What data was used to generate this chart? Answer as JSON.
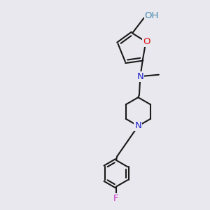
{
  "bg_color": "#e8e8ee",
  "bond_color": "#1a1a1a",
  "N_color": "#2020cc",
  "O_color": "#dd1111",
  "F_color": "#cc33cc",
  "OH_color": "#4488aa",
  "lw": 1.5,
  "fs": 9.5,
  "xlim": [
    0,
    10
  ],
  "ylim": [
    0,
    10
  ]
}
